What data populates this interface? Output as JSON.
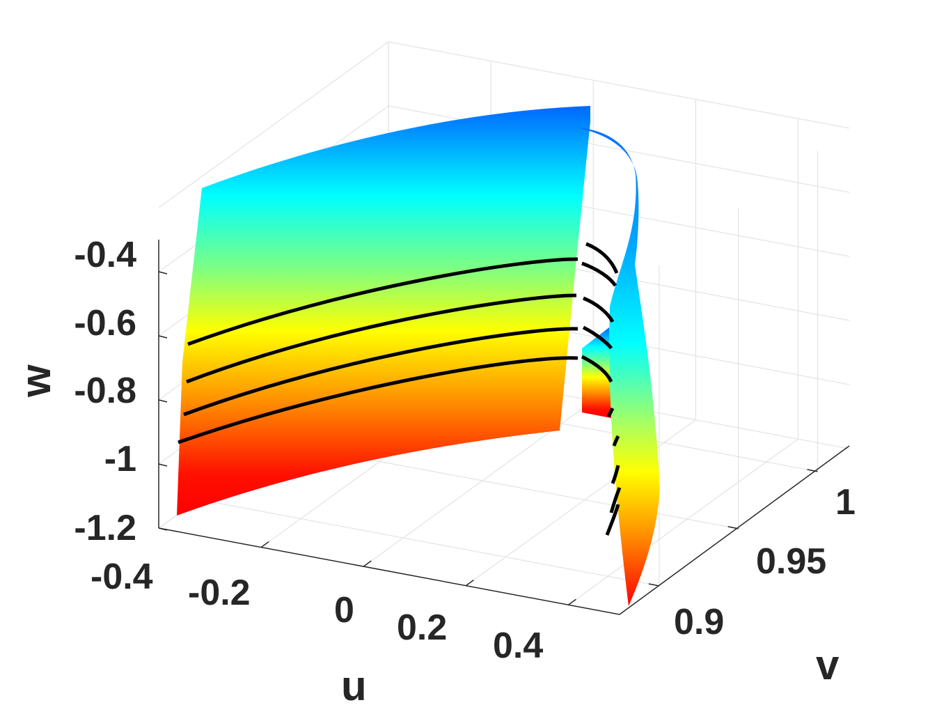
{
  "chart_data": {
    "type": "surface3d",
    "title": "",
    "xlabel": "u",
    "ylabel": "v",
    "zlabel": "w",
    "xlim": [
      -0.4,
      0.5
    ],
    "ylim": [
      0.875,
      1.02
    ],
    "zlim": [
      -1.2,
      -0.2
    ],
    "xticks": [
      "-0.4",
      "-0.2",
      "0",
      "0.2",
      "0.4"
    ],
    "yticks": [
      "0.9",
      "0.95",
      "1"
    ],
    "zticks": [
      "-0.4",
      "-0.6",
      "-0.8",
      "-1",
      "-1.2"
    ],
    "grid": true,
    "colormap": "jet",
    "colormap_colors": [
      "#0000ff",
      "#00a0ff",
      "#00ffff",
      "#80ff80",
      "#ffff00",
      "#ff8000",
      "#ff0000"
    ],
    "surfaces": [
      {
        "name": "",
        "type": "sheet",
        "u_range": [
          -0.4,
          0.47
        ],
        "v_range": [
          0.88,
          0.88
        ],
        "w_range": [
          -1.2,
          -0.18
        ]
      },
      {
        "name": "",
        "type": "sheet",
        "u_range": [
          0.47,
          0.5
        ],
        "v_range": [
          0.88,
          1.0
        ],
        "w_range": [
          -1.2,
          -0.2
        ]
      }
    ],
    "level_curves": [
      {
        "w": -0.52
      },
      {
        "w": -0.62
      },
      {
        "w": -0.72
      },
      {
        "w": -0.8
      }
    ]
  }
}
